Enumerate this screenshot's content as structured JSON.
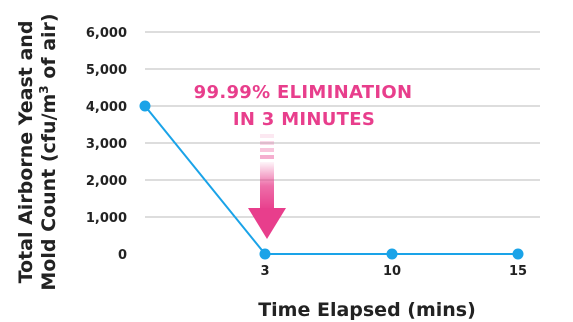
{
  "colors": {
    "line": "#1aa3e8",
    "point": "#1aa3e8",
    "grid": "#bbbbbb",
    "callout": "#e83e8c",
    "text": "#222222"
  },
  "chart_data": {
    "type": "line",
    "x": [
      "0",
      "3",
      "10",
      "15"
    ],
    "y": [
      4000,
      0,
      0,
      0
    ],
    "xlabel": "Time Elapsed (mins)",
    "ylabel_line1": "Total Airborne Yeast and",
    "ylabel_line2_prefix": "Mold Count (cfu/m",
    "ylabel_line2_sup": "3",
    "ylabel_line2_suffix": " of air)",
    "ylim": [
      0,
      6000
    ],
    "yticks": [
      "0",
      "1,000",
      "2,000",
      "3,000",
      "4,000",
      "5,000",
      "6,000"
    ],
    "grid": true,
    "annotation": {
      "line1": "99.99% ELIMINATION",
      "line2": "IN 3 MINUTES",
      "icon": "down-arrow-icon"
    }
  }
}
